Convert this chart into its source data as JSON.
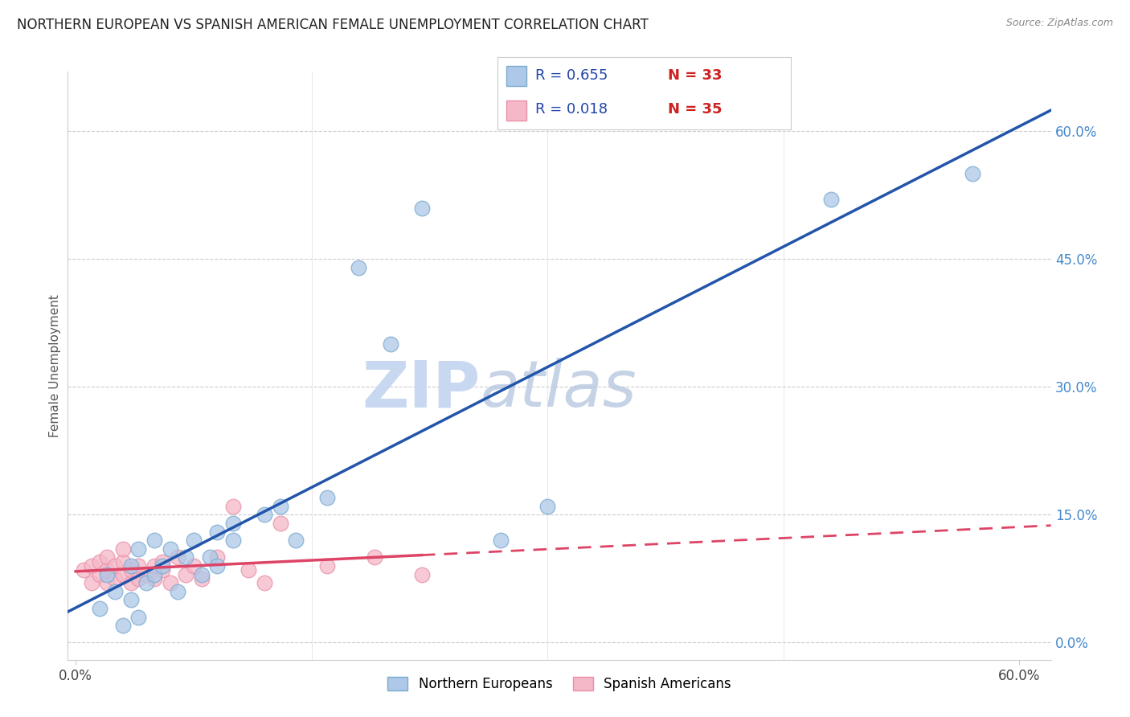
{
  "title": "NORTHERN EUROPEAN VS SPANISH AMERICAN FEMALE UNEMPLOYMENT CORRELATION CHART",
  "source": "Source: ZipAtlas.com",
  "ylabel": "Female Unemployment",
  "xlim": [
    -0.005,
    0.62
  ],
  "ylim": [
    -0.02,
    0.67
  ],
  "ytick_labels": [
    "60.0%",
    "45.0%",
    "30.0%",
    "15.0%",
    "0.0%"
  ],
  "ytick_values": [
    0.6,
    0.45,
    0.3,
    0.15,
    0.0
  ],
  "xtick_labels": [
    "0.0%",
    "60.0%"
  ],
  "xtick_values": [
    0.0,
    0.6
  ],
  "legend_R1": "R = 0.655",
  "legend_N1": "N = 33",
  "legend_R2": "R = 0.018",
  "legend_N2": "N = 35",
  "northern_europeans_color": "#adc8e8",
  "spanish_americans_color": "#f5b8c8",
  "northern_europeans_line_color": "#2255aa",
  "spanish_americans_line_color": "#dd4466",
  "watermark_zip": "ZIP",
  "watermark_atlas": "atlas",
  "watermark_color": "#c8d8f0",
  "ne_marker_edge": "#7aaacf",
  "sa_marker_edge": "#e890a8",
  "northern_europeans_x": [
    0.015,
    0.02,
    0.025,
    0.03,
    0.035,
    0.035,
    0.04,
    0.04,
    0.045,
    0.05,
    0.05,
    0.055,
    0.06,
    0.065,
    0.07,
    0.075,
    0.08,
    0.085,
    0.09,
    0.09,
    0.1,
    0.1,
    0.12,
    0.13,
    0.14,
    0.16,
    0.18,
    0.2,
    0.22,
    0.27,
    0.3,
    0.48,
    0.57
  ],
  "northern_europeans_y": [
    0.04,
    0.08,
    0.06,
    0.02,
    0.09,
    0.05,
    0.03,
    0.11,
    0.07,
    0.12,
    0.08,
    0.09,
    0.11,
    0.06,
    0.1,
    0.12,
    0.08,
    0.1,
    0.13,
    0.09,
    0.12,
    0.14,
    0.15,
    0.16,
    0.12,
    0.17,
    0.44,
    0.35,
    0.51,
    0.12,
    0.16,
    0.52,
    0.55
  ],
  "spanish_americans_x": [
    0.005,
    0.01,
    0.01,
    0.015,
    0.015,
    0.02,
    0.02,
    0.02,
    0.025,
    0.025,
    0.03,
    0.03,
    0.03,
    0.035,
    0.035,
    0.04,
    0.04,
    0.045,
    0.05,
    0.05,
    0.055,
    0.055,
    0.06,
    0.065,
    0.07,
    0.075,
    0.08,
    0.09,
    0.1,
    0.11,
    0.12,
    0.13,
    0.16,
    0.19,
    0.22
  ],
  "spanish_americans_y": [
    0.085,
    0.07,
    0.09,
    0.08,
    0.095,
    0.07,
    0.085,
    0.1,
    0.075,
    0.09,
    0.08,
    0.095,
    0.11,
    0.07,
    0.085,
    0.075,
    0.09,
    0.08,
    0.075,
    0.09,
    0.085,
    0.095,
    0.07,
    0.1,
    0.08,
    0.09,
    0.075,
    0.1,
    0.16,
    0.085,
    0.07,
    0.14,
    0.09,
    0.1,
    0.08
  ]
}
